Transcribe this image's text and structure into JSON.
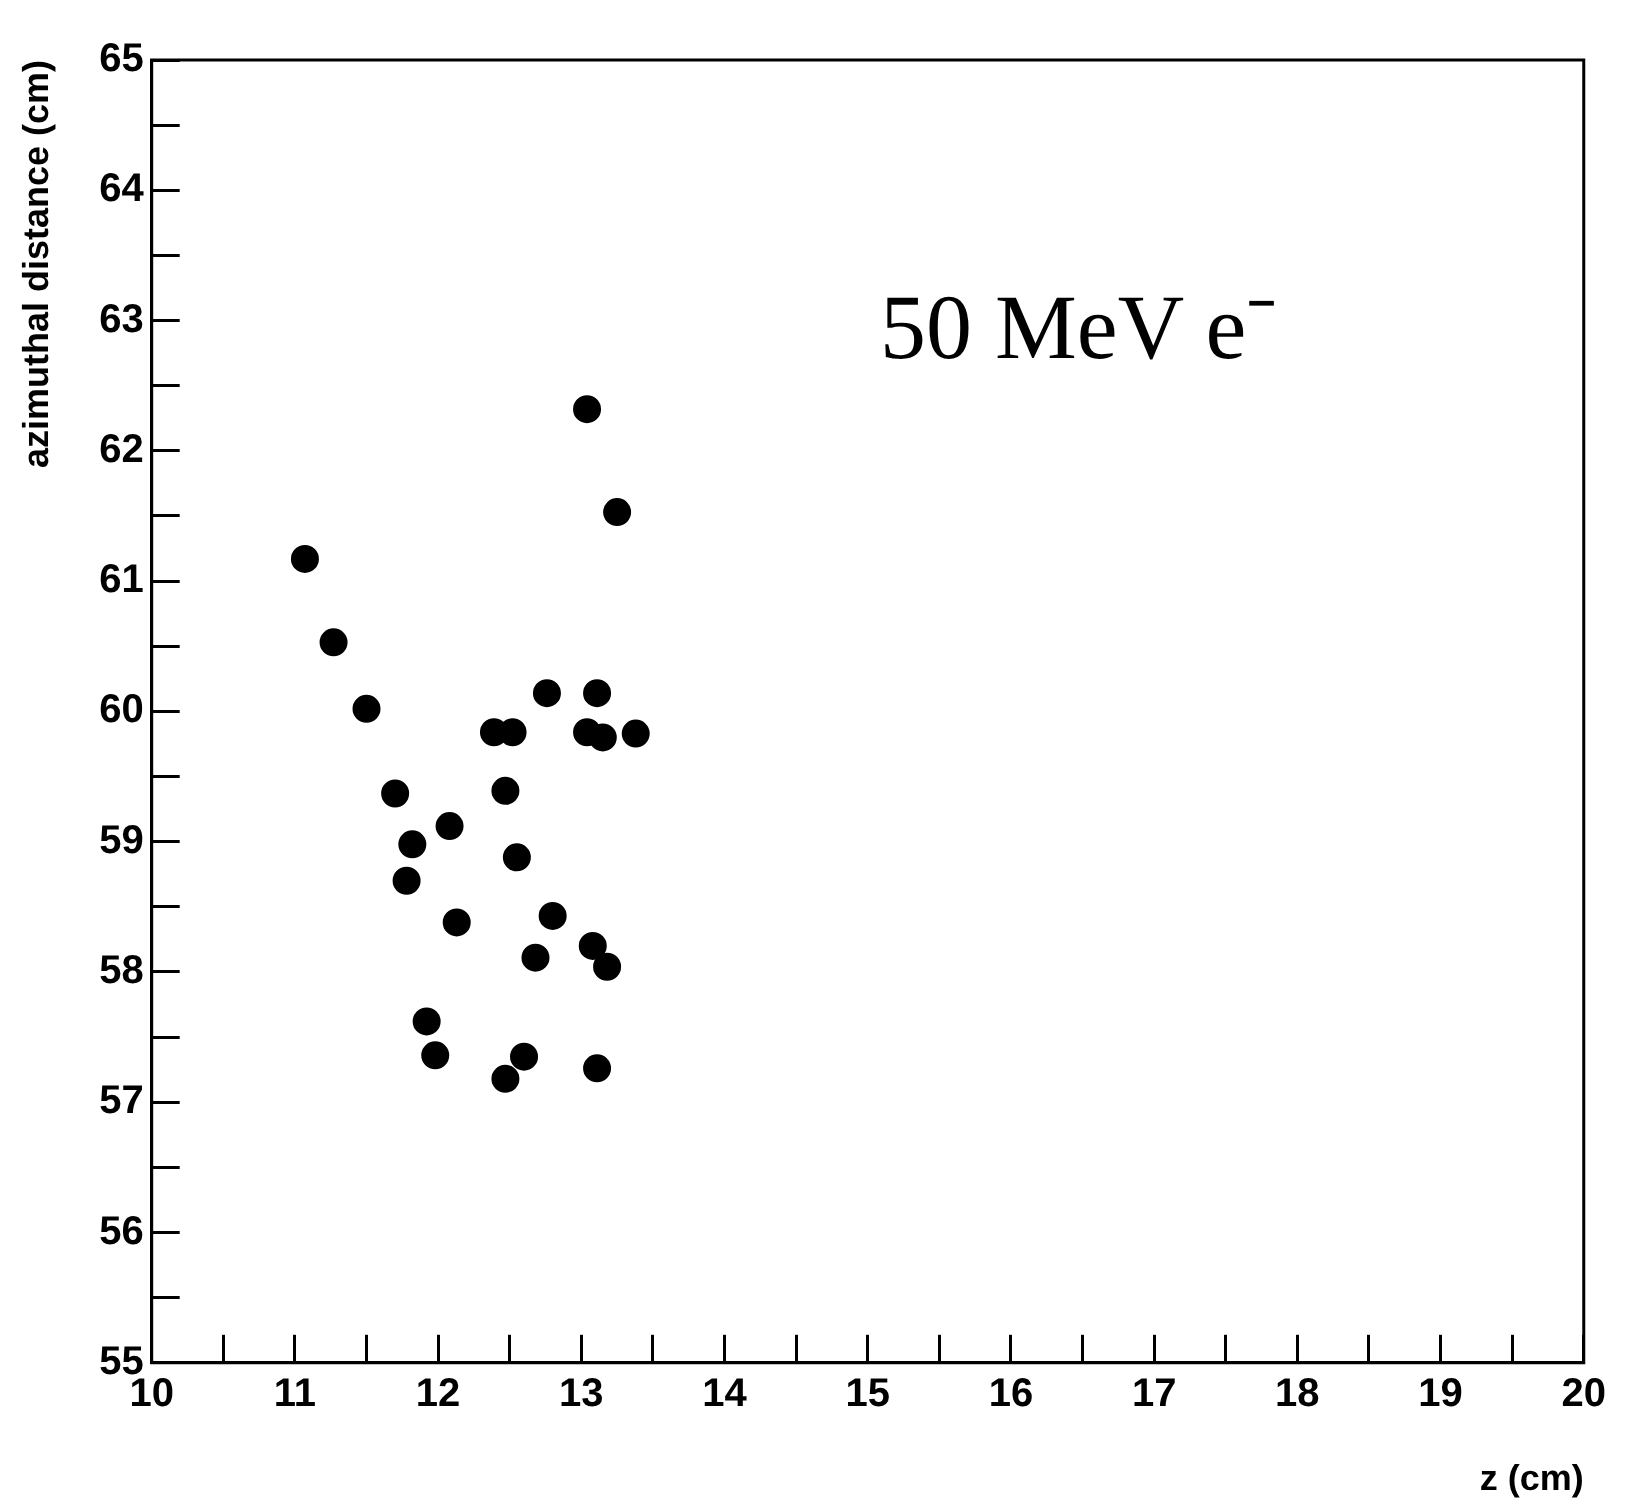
{
  "chart_data": {
    "type": "scatter",
    "xlabel": "z (cm)",
    "ylabel": "azimuthal distance (cm)",
    "annotations": [
      "50 MeV e⁻"
    ],
    "xlim": [
      10,
      20
    ],
    "ylim": [
      55,
      65
    ],
    "xticks": [
      10,
      {
        "value": 10.5,
        "label": null
      },
      11,
      {
        "value": 11.5,
        "label": null
      },
      12,
      {
        "value": 12.5,
        "label": null
      },
      13,
      {
        "value": 13.5,
        "label": null
      },
      14,
      {
        "value": 14.5,
        "label": null
      },
      15,
      {
        "value": 15.5,
        "label": null
      },
      16,
      {
        "value": 16.5,
        "label": null
      },
      17,
      {
        "value": 17.5,
        "label": null
      },
      18,
      {
        "value": 18.5,
        "label": null
      },
      19,
      {
        "value": 19.5,
        "label": null
      },
      20
    ],
    "yticks": [
      55,
      {
        "value": 55.5,
        "label": null
      },
      56,
      {
        "value": 56.5,
        "label": null
      },
      57,
      {
        "value": 57.5,
        "label": null
      },
      58,
      {
        "value": 58.5,
        "label": null
      },
      59,
      {
        "value": 59.5,
        "label": null
      },
      60,
      {
        "value": 60.5,
        "label": null
      },
      61,
      {
        "value": 61.5,
        "label": null
      },
      62,
      {
        "value": 62.5,
        "label": null
      },
      63,
      {
        "value": 63.5,
        "label": null
      },
      64,
      {
        "value": 64.5,
        "label": null
      },
      65
    ],
    "grid": false,
    "legend": false,
    "marker": "circle",
    "series": [
      {
        "color": "#000000",
        "x": [
          11.07,
          11.27,
          11.5,
          11.7,
          11.82,
          11.78,
          12.08,
          12.13,
          11.92,
          11.98,
          12.39,
          12.52,
          12.47,
          12.55,
          12.47,
          12.6,
          12.68,
          12.8,
          12.76,
          13.04,
          13.11,
          13.04,
          13.15,
          13.38,
          13.25,
          13.08,
          13.18,
          13.11
        ],
        "values": [
          61.17,
          60.53,
          60.02,
          59.37,
          58.98,
          58.7,
          59.12,
          58.38,
          57.62,
          57.36,
          59.84,
          59.84,
          59.39,
          58.88,
          57.18,
          57.35,
          58.11,
          58.43,
          60.14,
          62.32,
          60.14,
          59.84,
          59.8,
          59.83,
          61.53,
          58.2,
          58.04,
          57.26
        ]
      }
    ]
  }
}
